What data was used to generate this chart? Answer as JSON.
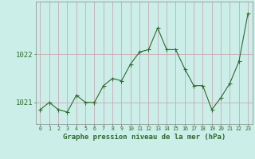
{
  "x": [
    0,
    1,
    2,
    3,
    4,
    5,
    6,
    7,
    8,
    9,
    10,
    11,
    12,
    13,
    14,
    15,
    16,
    17,
    18,
    19,
    20,
    21,
    22,
    23
  ],
  "y": [
    1020.85,
    1021.0,
    1020.85,
    1020.8,
    1021.15,
    1021.0,
    1021.0,
    1021.35,
    1021.5,
    1021.45,
    1021.8,
    1022.05,
    1022.1,
    1022.55,
    1022.1,
    1022.1,
    1021.7,
    1021.35,
    1021.35,
    1020.85,
    1021.1,
    1021.4,
    1021.85,
    1022.85
  ],
  "line_color": "#2d6a2d",
  "marker_color": "#2d6a2d",
  "bg_color": "#cceee8",
  "hgrid_color": "#c8aab4",
  "vgrid_color": "#c8aab4",
  "xlabel": "Graphe pression niveau de la mer (hPa)",
  "yticks": [
    1021,
    1022
  ],
  "xticks": [
    0,
    1,
    2,
    3,
    4,
    5,
    6,
    7,
    8,
    9,
    10,
    11,
    12,
    13,
    14,
    15,
    16,
    17,
    18,
    19,
    20,
    21,
    22,
    23
  ],
  "xtick_labels": [
    "0",
    "1",
    "2",
    "3",
    "4",
    "5",
    "6",
    "7",
    "8",
    "9",
    "10",
    "11",
    "12",
    "13",
    "14",
    "15",
    "16",
    "17",
    "18",
    "19",
    "20",
    "21",
    "22",
    "23"
  ],
  "label_color": "#2d6a2d",
  "tick_color": "#2d6a2d",
  "xlabel_fontsize": 6.5,
  "ytick_fontsize": 6.5,
  "xtick_fontsize": 4.8,
  "linewidth": 0.8,
  "markersize": 2.0,
  "xlim": [
    -0.5,
    23.5
  ],
  "ylim": [
    1020.55,
    1023.1
  ]
}
